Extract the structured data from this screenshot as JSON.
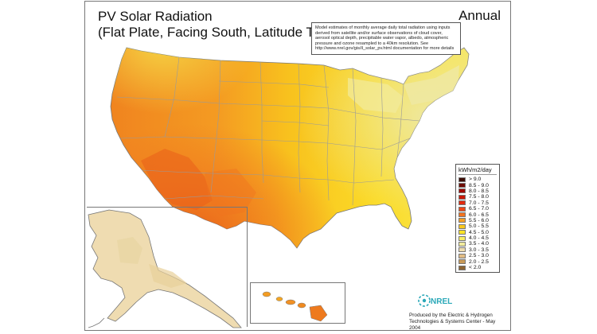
{
  "title": {
    "line1": "PV Solar Radiation",
    "line2": "(Flat Plate, Facing South, Latitude Tilt)"
  },
  "period": "Annual",
  "note": "Model estimates of monthly average daily total radiation using inputs derived from satellite and/or surface observations of cloud cover, aerosol optical depth, precipitable water vapor, albedo, atmospheric pressure and ozone resampled to a 40km resolution.  See http://www.nrel.gov/gis/il_solar_pv.html documentation for more details",
  "legend": {
    "unit": "kWh/m2/day",
    "items": [
      {
        "label": "> 9.0",
        "color": "#3d0d05"
      },
      {
        "label": "8.5 - 9.0",
        "color": "#6e0d06"
      },
      {
        "label": "8.0 - 8.5",
        "color": "#a10b05"
      },
      {
        "label": "7.5 - 8.0",
        "color": "#c91808"
      },
      {
        "label": "7.0 - 7.5",
        "color": "#e22b10"
      },
      {
        "label": "6.5 - 7.0",
        "color": "#ef4818"
      },
      {
        "label": "6.0 - 6.5",
        "color": "#f2731f"
      },
      {
        "label": "5.5 - 6.0",
        "color": "#f6a025"
      },
      {
        "label": "5.0 - 5.5",
        "color": "#f9c81e"
      },
      {
        "label": "4.5 - 5.0",
        "color": "#fbe326"
      },
      {
        "label": "4.0 - 4.5",
        "color": "#f7ee62"
      },
      {
        "label": "3.5 - 4.0",
        "color": "#f2eb9d"
      },
      {
        "label": "3.0 - 3.5",
        "color": "#eedcae"
      },
      {
        "label": "2.5 - 3.0",
        "color": "#e2bd85"
      },
      {
        "label": "2.0 - 2.5",
        "color": "#c99a58"
      },
      {
        "label": "< 2.0",
        "color": "#8c6433"
      }
    ]
  },
  "logo_text": "NREL",
  "credit": {
    "line1": "Produced by the Electric & Hydrogen",
    "line2": "Technologies & Systems Center - May 2004"
  },
  "colors": {
    "border": "#777777",
    "state_lines": "#9a9a9a",
    "logo_teal": "#2aa8b8"
  }
}
